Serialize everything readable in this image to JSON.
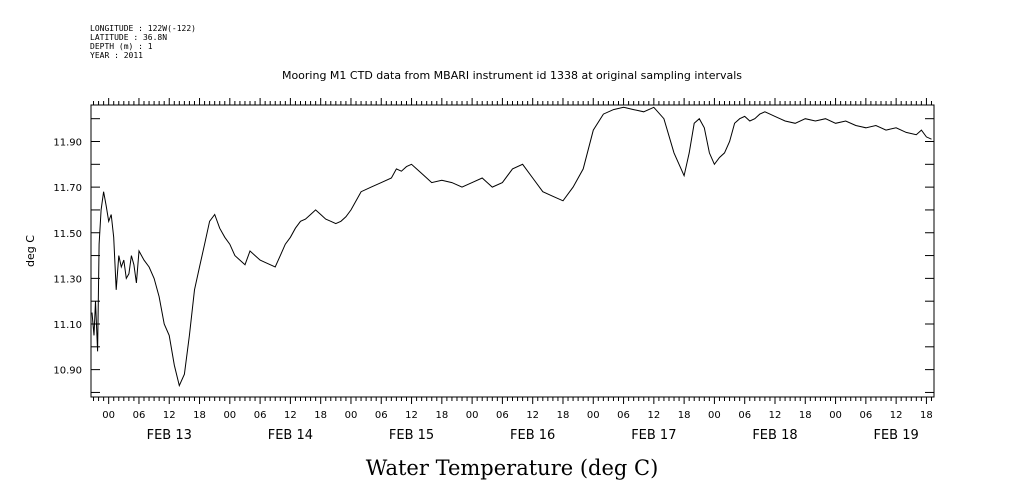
{
  "header_info": {
    "longitude": "LONGITUDE : 122W(-122)",
    "latitude": "LATITUDE : 36.8N",
    "depth": "DEPTH (m) : 1",
    "year": "YEAR : 2011"
  },
  "chart_data": {
    "type": "line",
    "title": "Mooring M1 CTD data from MBARI instrument id 1338 at original sampling intervals",
    "ylabel": "deg C",
    "xlabel": "Water Temperature (deg C)",
    "ylim": [
      10.78,
      12.06
    ],
    "xlim": [
      -3.5,
      163.5
    ],
    "yticks": [
      10.9,
      11.1,
      11.3,
      11.5,
      11.7,
      11.9
    ],
    "ytick_labels": [
      "10.90",
      "11.10",
      "11.30",
      "11.50",
      "11.70",
      "11.90"
    ],
    "xtick_labels": [
      "00",
      "06",
      "12",
      "18",
      "00",
      "06",
      "12",
      "18",
      "00",
      "06",
      "12",
      "18",
      "00",
      "06",
      "12",
      "18",
      "00",
      "06",
      "12",
      "18",
      "00",
      "06",
      "12",
      "18",
      "00",
      "06",
      "12",
      "18"
    ],
    "day_labels": [
      "FEB 13",
      "FEB 14",
      "FEB 15",
      "FEB 16",
      "FEB 17",
      "FEB 18",
      "FEB 19"
    ],
    "grid": false,
    "series": [
      {
        "x": [
          -3.3,
          -2.9,
          -2.6,
          -2.2,
          -1.9,
          -1.5,
          -1.0,
          -0.5,
          0,
          0.5,
          1.0,
          1.5,
          2.0,
          2.5,
          3.0,
          3.5,
          4.0,
          4.5,
          5.0,
          5.5,
          6.0,
          7.0,
          8.0,
          9.0,
          10.0,
          11.0,
          12.0,
          13.0,
          14.0,
          15.0,
          16.0,
          17.0,
          18.0,
          19.0,
          20.0,
          21.0,
          22.0,
          23.0,
          24.0,
          25.0,
          26.0,
          27.0,
          28.0,
          29.0,
          30.0,
          31.0,
          32.0,
          33.0,
          34.0,
          35.0,
          36.0,
          37.0,
          38.0,
          39.0,
          40.0,
          41.0,
          42.0,
          43.0,
          44.0,
          45.0,
          46.0,
          47.0,
          48.0,
          50.0,
          52.0,
          54.0,
          56.0,
          57.0,
          58.0,
          59.0,
          60.0,
          61.0,
          62.0,
          63.0,
          64.0,
          66.0,
          68.0,
          70.0,
          72.0,
          74.0,
          75.0,
          76.0,
          78.0,
          80.0,
          82.0,
          84.0,
          86.0,
          88.0,
          90.0,
          92.0,
          94.0,
          96.0,
          98.0,
          100.0,
          102.0,
          104.0,
          106.0,
          108.0,
          110.0,
          112.0,
          114.0,
          115.0,
          116.0,
          117.0,
          118.0,
          119.0,
          120.0,
          121.0,
          122.0,
          123.0,
          124.0,
          125.0,
          126.0,
          127.0,
          128.0,
          129.0,
          130.0,
          131.0,
          132.0,
          133.0,
          134.0,
          136.0,
          138.0,
          140.0,
          142.0,
          144.0,
          146.0,
          148.0,
          150.0,
          152.0,
          154.0,
          156.0,
          158.0,
          160.0,
          161.0,
          162.0,
          163.0
        ],
        "y": [
          11.15,
          11.05,
          11.2,
          10.98,
          11.45,
          11.6,
          11.68,
          11.62,
          11.55,
          11.58,
          11.48,
          11.25,
          11.4,
          11.35,
          11.38,
          11.3,
          11.32,
          11.4,
          11.36,
          11.28,
          11.42,
          11.38,
          11.35,
          11.3,
          11.22,
          11.1,
          11.05,
          10.92,
          10.83,
          10.88,
          11.05,
          11.25,
          11.35,
          11.45,
          11.55,
          11.58,
          11.52,
          11.48,
          11.45,
          11.4,
          11.38,
          11.36,
          11.42,
          11.4,
          11.38,
          11.37,
          11.36,
          11.35,
          11.4,
          11.45,
          11.48,
          11.52,
          11.55,
          11.56,
          11.58,
          11.6,
          11.58,
          11.56,
          11.55,
          11.54,
          11.55,
          11.57,
          11.6,
          11.68,
          11.7,
          11.72,
          11.74,
          11.78,
          11.77,
          11.79,
          11.8,
          11.78,
          11.76,
          11.74,
          11.72,
          11.73,
          11.72,
          11.7,
          11.72,
          11.74,
          11.72,
          11.7,
          11.72,
          11.78,
          11.8,
          11.74,
          11.68,
          11.66,
          11.64,
          11.7,
          11.78,
          11.95,
          12.02,
          12.04,
          12.05,
          12.04,
          12.03,
          12.05,
          12.0,
          11.85,
          11.75,
          11.85,
          11.98,
          12.0,
          11.96,
          11.85,
          11.8,
          11.83,
          11.85,
          11.9,
          11.98,
          12.0,
          12.01,
          11.99,
          12.0,
          12.02,
          12.03,
          12.02,
          12.01,
          12.0,
          11.99,
          11.98,
          12.0,
          11.99,
          12.0,
          11.98,
          11.99,
          11.97,
          11.96,
          11.97,
          11.95,
          11.96,
          11.94,
          11.93,
          11.95,
          11.92,
          11.91
        ]
      }
    ]
  }
}
